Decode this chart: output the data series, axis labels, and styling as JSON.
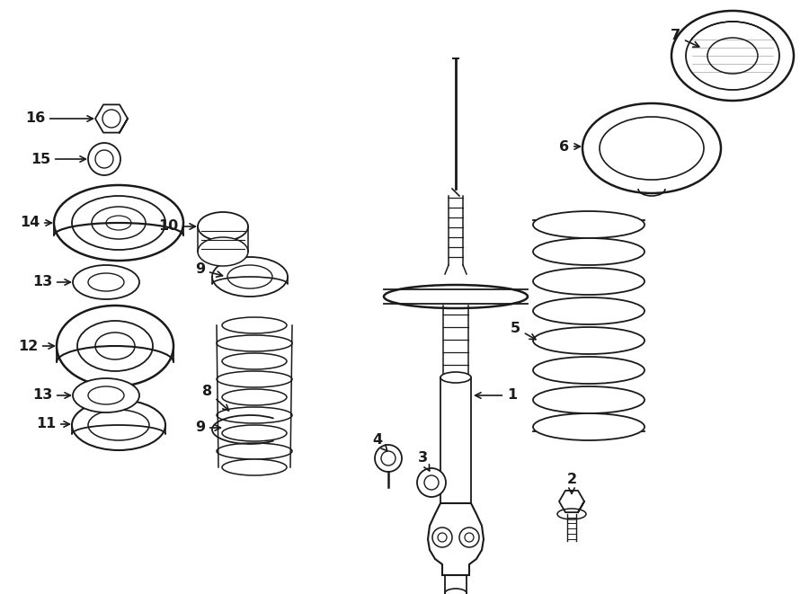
{
  "bg_color": "#ffffff",
  "line_color": "#1a1a1a",
  "fig_width": 9.0,
  "fig_height": 6.61
}
